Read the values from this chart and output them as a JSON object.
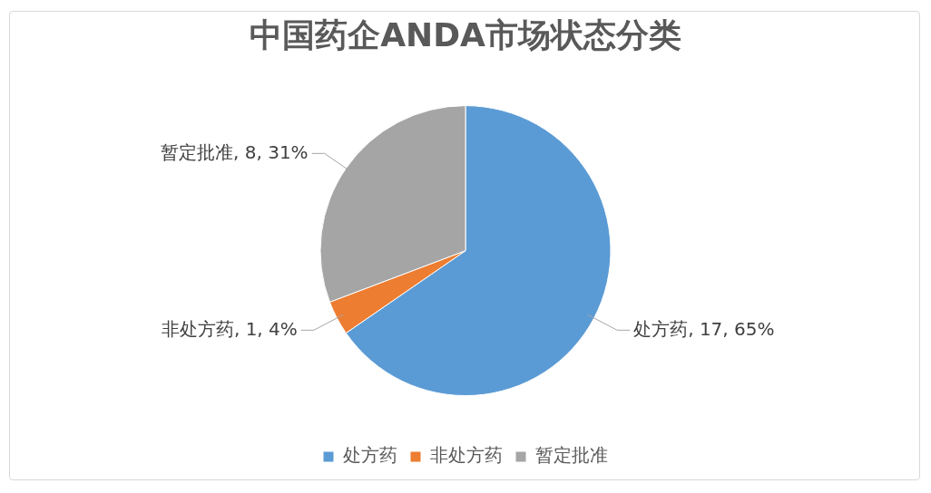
{
  "chart_data": {
    "type": "pie",
    "title": "中国药企ANDA市场状态分类",
    "categories": [
      "处方药",
      "非处方药",
      "暂定批准"
    ],
    "values": [
      17,
      1,
      8
    ],
    "colors": [
      "#5b9bd5",
      "#ed7d31",
      "#a5a5a5"
    ],
    "value_labels": [
      "处方药, 17, 65%",
      "非处方药, 1, 4%",
      "暂定批准, 8, 31%"
    ],
    "legend": "bottom"
  }
}
